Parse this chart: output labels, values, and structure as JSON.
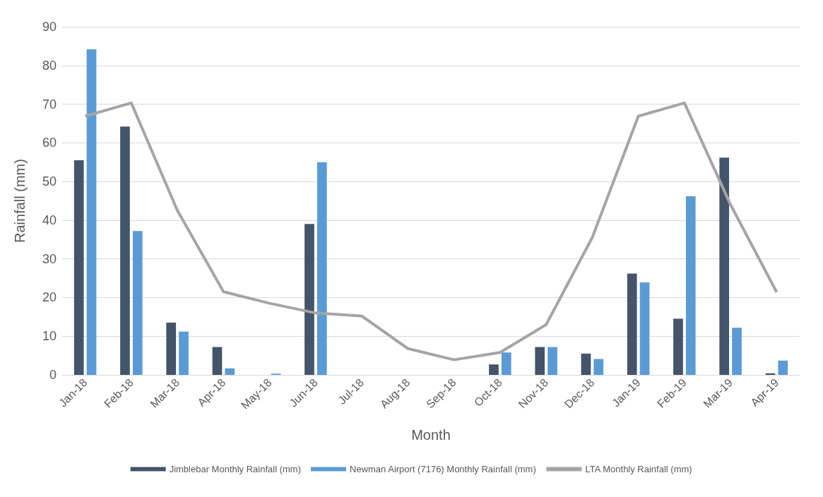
{
  "chart_data": {
    "type": "bar",
    "xlabel": "Month",
    "ylabel": "Rainfall (mm)",
    "categories": [
      "Jan-18",
      "Feb-18",
      "Mar-18",
      "Apr-18",
      "May-18",
      "Jun-18",
      "Jul-18",
      "Aug-18",
      "Sep-18",
      "Oct-18",
      "Nov-18",
      "Dec-18",
      "Jan-19",
      "Feb-19",
      "Mar-19",
      "Apr-19"
    ],
    "series": [
      {
        "name": "Jimblebar Monthly Rainfall (mm)",
        "color": "#44546a",
        "values": [
          55.5,
          64.2,
          13.5,
          7.2,
          0,
          39,
          0,
          0,
          0,
          2.7,
          7.2,
          5.5,
          26.2,
          14.5,
          56.2,
          0.4
        ]
      },
      {
        "name": "Newman Airport (7176) Monthly Rainfall (mm)",
        "color": "#5b9bd5",
        "values": [
          84.2,
          37.2,
          11.2,
          1.7,
          0.3,
          55,
          0,
          0,
          0,
          5.8,
          7.2,
          4.1,
          23.9,
          46.2,
          12.2,
          3.7
        ]
      },
      {
        "name": "LTA Monthly Rainfall (mm)",
        "type": "line",
        "color": "#a5a5a5",
        "marker": "none",
        "values": [
          66.9,
          70.3,
          42.5,
          21.5,
          18.5,
          16,
          15.2,
          6.8,
          3.9,
          5.8,
          13,
          35.5,
          66.9,
          70.3,
          44,
          21.4
        ]
      }
    ],
    "ylim": [
      0,
      90
    ],
    "yticks": [
      0,
      10,
      20,
      30,
      40,
      50,
      60,
      70,
      80,
      90
    ],
    "grid": "y",
    "legend": "bottom"
  }
}
